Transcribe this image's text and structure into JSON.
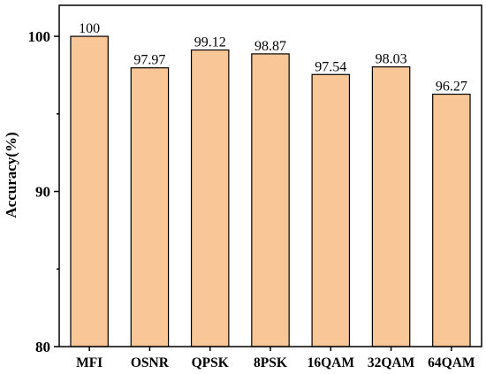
{
  "chart_data": {
    "type": "bar",
    "title": "",
    "xlabel": "",
    "ylabel": "Accuracy(%)",
    "categories": [
      "MFI",
      "OSNR",
      "QPSK",
      "8PSK",
      "16QAM",
      "32QAM",
      "64QAM"
    ],
    "values": [
      100,
      97.97,
      99.12,
      98.87,
      97.54,
      98.03,
      96.27
    ],
    "data_labels": [
      "100",
      "97.97",
      "99.12",
      "98.87",
      "97.54",
      "98.03",
      "96.27"
    ],
    "ylim": [
      80,
      102
    ],
    "yticks": [
      80,
      90,
      100
    ],
    "grid": false,
    "legend": "none",
    "colors": {
      "bar_fill": "#f9c697",
      "bar_stroke": "#000000"
    }
  }
}
